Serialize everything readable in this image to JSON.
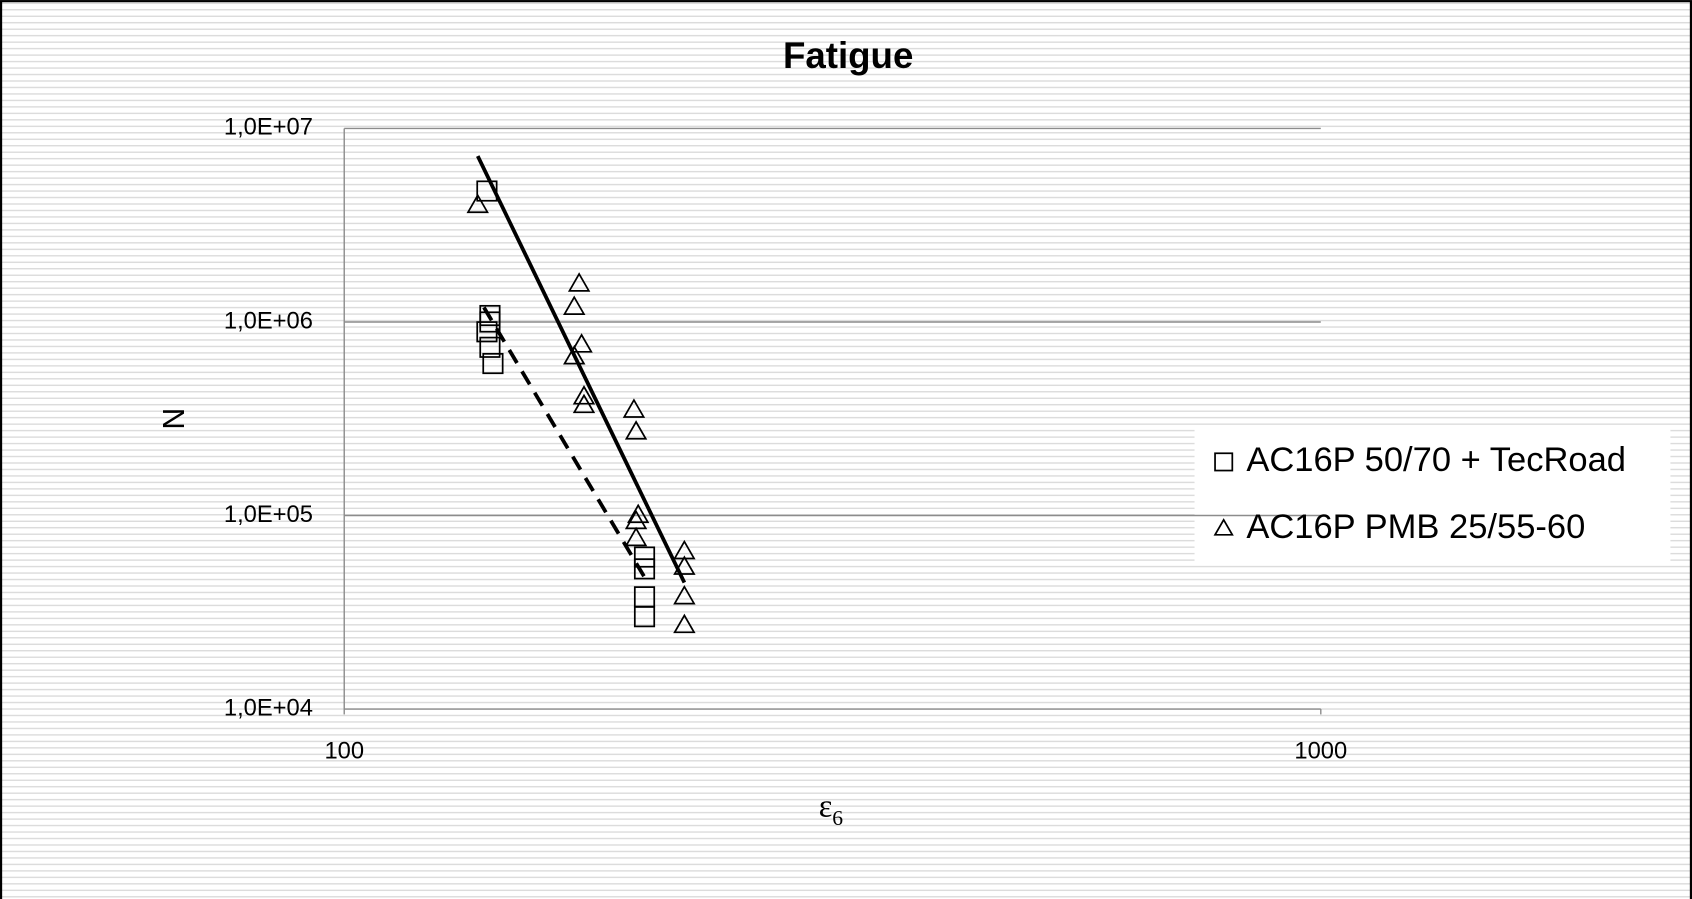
{
  "chart_data": {
    "type": "scatter",
    "title": "Fatigue",
    "y_label": "N",
    "x_label": "ε",
    "x_label_subscript": "6",
    "log_x": true,
    "log_y": true,
    "grid": true,
    "legend": "right",
    "xlim": [
      100,
      1000
    ],
    "xticks": [
      100,
      1000
    ],
    "ylim": [
      10000,
      10000000
    ],
    "yticks": [
      {
        "value": 10000,
        "label": "1,0E+04"
      },
      {
        "value": 100000,
        "label": "1,0E+05"
      },
      {
        "value": 1000000,
        "label": "1,0E+06"
      },
      {
        "value": 10000000,
        "label": "1,0E+07"
      }
    ],
    "series": [
      {
        "name": "AC16P 50/70 + TecRoad",
        "marker": "square",
        "color": "#000000",
        "x": [
          140,
          141,
          141,
          140,
          141,
          142,
          203,
          203,
          203,
          203
        ],
        "values": [
          4750000,
          1080000,
          1000000,
          890000,
          740000,
          610000,
          61000,
          53000,
          38000,
          30000
        ],
        "trendline": {
          "x": [
            139,
            203
          ],
          "values": [
            1190000,
            48000
          ],
          "dashed": true
        }
      },
      {
        "name": "AC16P PMB 25/55-60",
        "marker": "triangle",
        "color": "#000000",
        "x": [
          137,
          174,
          172,
          175,
          172,
          176,
          176,
          198,
          199,
          200,
          199,
          199,
          223,
          223,
          223,
          223
        ],
        "values": [
          4000000,
          1570000,
          1190000,
          760000,
          660000,
          410000,
          370000,
          350000,
          270000,
          100000,
          93000,
          76000,
          65000,
          54000,
          38000,
          27000
        ],
        "trendline": {
          "x": [
            137,
            223
          ],
          "values": [
            7200000,
            45000
          ],
          "dashed": false
        }
      }
    ]
  }
}
